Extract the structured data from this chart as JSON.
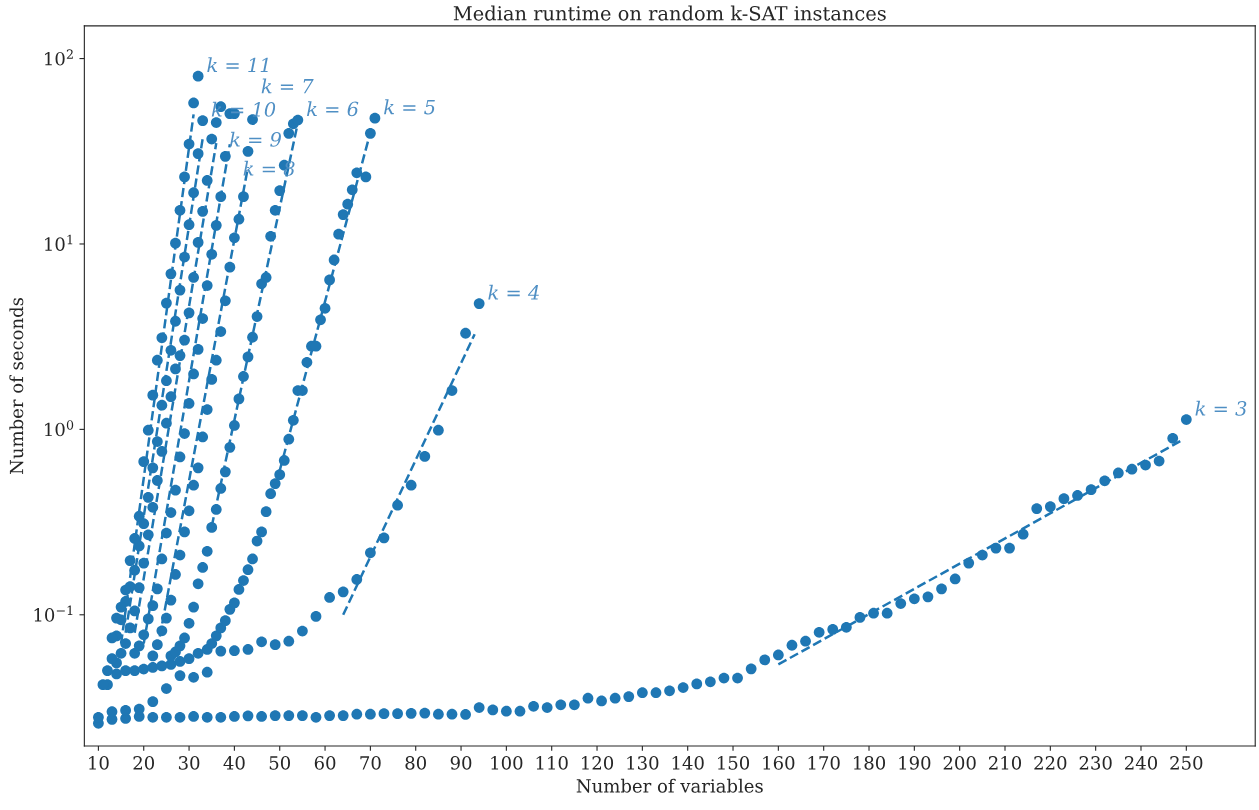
{
  "chart_data": {
    "type": "scatter",
    "title": "Median runtime on random k-SAT instances",
    "xlabel": "Number of variables",
    "ylabel": "Number of seconds",
    "log": "y",
    "grid": false,
    "legend": false,
    "marker": "circle",
    "xlim": [
      6.9,
      265.2
    ],
    "xticks": [
      10,
      20,
      30,
      40,
      50,
      60,
      70,
      80,
      90,
      100,
      110,
      120,
      130,
      140,
      150,
      160,
      170,
      180,
      190,
      200,
      210,
      220,
      230,
      240,
      250
    ],
    "ylim": [
      0.0196,
      150
    ],
    "yticks": [
      {
        "value": 0.1,
        "label": "10$^{−1}$"
      },
      {
        "value": 1,
        "label": "10$^{0}$"
      },
      {
        "value": 10,
        "label": "10$^{1}$"
      },
      {
        "value": 100,
        "label": "10$^{2}$"
      }
    ],
    "series": [
      {
        "color": "#1f77b4",
        "x": [
          10,
          13,
          16,
          19,
          22,
          25,
          28,
          31,
          34,
          37,
          40,
          43,
          46,
          49,
          52,
          55,
          58,
          61,
          64,
          67,
          70,
          73,
          76,
          79,
          82,
          85,
          88,
          91,
          94,
          97,
          100,
          103,
          106,
          109,
          112,
          115,
          118,
          121,
          124,
          127,
          130,
          133,
          136,
          139,
          142,
          145,
          148,
          151,
          154,
          157,
          160,
          163,
          166,
          169,
          172,
          175,
          178,
          181,
          184,
          187,
          190,
          193,
          196,
          199,
          202,
          205,
          208,
          211,
          214,
          217,
          220,
          223,
          226,
          229,
          232,
          235,
          238,
          241,
          244,
          247,
          250
        ],
        "values": [
          0.026,
          0.0273,
          0.0276,
          0.0283,
          0.028,
          0.028,
          0.028,
          0.0283,
          0.028,
          0.028,
          0.0283,
          0.0285,
          0.0283,
          0.0286,
          0.0286,
          0.0286,
          0.028,
          0.0286,
          0.0286,
          0.0291,
          0.0291,
          0.0293,
          0.0293,
          0.0294,
          0.0295,
          0.0291,
          0.0291,
          0.029,
          0.0316,
          0.0307,
          0.0302,
          0.0302,
          0.0321,
          0.0316,
          0.0327,
          0.0327,
          0.0355,
          0.0343,
          0.0355,
          0.0362,
          0.038,
          0.038,
          0.0389,
          0.0405,
          0.0424,
          0.0435,
          0.0456,
          0.0456,
          0.0511,
          0.0571,
          0.0607,
          0.0685,
          0.072,
          0.0805,
          0.0834,
          0.0856,
          0.0968,
          0.102,
          0.102,
          0.115,
          0.122,
          0.125,
          0.138,
          0.156,
          0.19,
          0.21,
          0.229,
          0.229,
          0.272,
          0.374,
          0.383,
          0.423,
          0.44,
          0.473,
          0.528,
          0.582,
          0.61,
          0.642,
          0.675,
          0.895,
          1.13
        ]
      },
      {
        "color": "#1f77b4",
        "x": [
          13,
          16,
          19,
          22,
          25,
          28,
          31,
          34,
          37,
          40,
          43,
          46,
          49,
          52,
          55,
          58,
          61,
          64,
          67,
          70,
          73,
          76,
          79,
          82,
          85,
          88,
          91,
          94
        ],
        "values": [
          0.03,
          0.0305,
          0.031,
          0.034,
          0.04,
          0.047,
          0.046,
          0.049,
          0.0637,
          0.064,
          0.065,
          0.0715,
          0.069,
          0.072,
          0.0817,
          0.098,
          0.124,
          0.133,
          0.155,
          0.216,
          0.26,
          0.39,
          0.5,
          0.715,
          0.99,
          1.62,
          3.3,
          4.77
        ]
      },
      {
        "color": "#1f77b4",
        "x": [
          12,
          14,
          16,
          18,
          20,
          22,
          24,
          26,
          28,
          30,
          32,
          34,
          35,
          36,
          37,
          38,
          39,
          40,
          41,
          42,
          43,
          44,
          45,
          46,
          47,
          48,
          49,
          50,
          51,
          52,
          53,
          54,
          55,
          56,
          57,
          58,
          59,
          60,
          61,
          62,
          63,
          64,
          65,
          66,
          67,
          69,
          70,
          71
        ],
        "values": [
          0.042,
          0.048,
          0.05,
          0.05,
          0.051,
          0.052,
          0.053,
          0.054,
          0.056,
          0.058,
          0.062,
          0.065,
          0.07,
          0.077,
          0.085,
          0.093,
          0.107,
          0.116,
          0.137,
          0.153,
          0.175,
          0.2,
          0.25,
          0.28,
          0.36,
          0.45,
          0.51,
          0.57,
          0.68,
          0.885,
          1.12,
          1.62,
          1.62,
          2.3,
          2.81,
          2.81,
          3.9,
          4.5,
          6.4,
          8.2,
          11.3,
          14.4,
          16.4,
          19.6,
          24.2,
          23,
          39.5,
          47.7
        ]
      },
      {
        "color": "#1f77b4",
        "x": [
          26,
          27,
          28,
          29,
          30,
          31,
          32,
          33,
          34,
          35,
          36,
          37,
          38,
          39,
          40,
          41,
          42,
          43,
          44,
          45,
          46,
          47,
          48,
          49,
          50,
          51,
          52,
          53,
          54
        ],
        "values": [
          0.06,
          0.063,
          0.068,
          0.075,
          0.09,
          0.11,
          0.147,
          0.18,
          0.22,
          0.296,
          0.37,
          0.48,
          0.59,
          0.8,
          1.05,
          1.46,
          1.93,
          2.46,
          3.14,
          4.06,
          6.1,
          6.6,
          11,
          15.2,
          19.4,
          26.6,
          39.5,
          44.5,
          46.6
        ]
      },
      {
        "color": "#1f77b4",
        "x": [
          22,
          23,
          24,
          25,
          26,
          27,
          28,
          29,
          30,
          31,
          32,
          33,
          34,
          35,
          36,
          37,
          38,
          39,
          40,
          41,
          42,
          43,
          44
        ],
        "values": [
          0.06,
          0.069,
          0.082,
          0.096,
          0.12,
          0.165,
          0.21,
          0.28,
          0.364,
          0.5,
          0.62,
          0.91,
          1.28,
          1.86,
          2.36,
          3.37,
          4.94,
          7.5,
          10.8,
          13.6,
          18,
          31.6,
          46.9
        ]
      },
      {
        "color": "#1f77b4",
        "x": [
          18,
          19,
          20,
          21,
          22,
          23,
          24,
          25,
          26,
          27,
          28,
          29,
          30,
          31,
          32,
          33,
          34,
          35,
          36,
          37,
          38,
          39,
          40
        ],
        "values": [
          0.062,
          0.068,
          0.078,
          0.095,
          0.112,
          0.138,
          0.2,
          0.276,
          0.356,
          0.47,
          0.71,
          0.95,
          1.38,
          1.99,
          2.7,
          3.96,
          5.97,
          8.8,
          12.6,
          18,
          29.7,
          50.5,
          50.5
        ]
      },
      {
        "color": "#1f77b4",
        "x": [
          14,
          15,
          16,
          17,
          18,
          19,
          20,
          21,
          22,
          23,
          24,
          25,
          26,
          27,
          28,
          29,
          30,
          31,
          32,
          33,
          34,
          35,
          36,
          37
        ],
        "values": [
          0.055,
          0.062,
          0.07,
          0.085,
          0.105,
          0.14,
          0.19,
          0.27,
          0.38,
          0.53,
          0.76,
          1.08,
          1.5,
          2.12,
          2.5,
          3.03,
          4.25,
          6.6,
          10.2,
          15,
          22,
          36.8,
          45.2,
          55
        ]
      },
      {
        "color": "#1f77b4",
        "x": [
          13,
          14,
          15,
          16,
          17,
          18,
          19,
          20,
          21,
          22,
          23,
          24,
          25,
          26,
          27,
          28,
          29,
          30,
          31,
          32,
          33
        ],
        "values": [
          0.058,
          0.077,
          0.094,
          0.118,
          0.142,
          0.174,
          0.235,
          0.31,
          0.43,
          0.62,
          0.86,
          1.35,
          1.83,
          2.67,
          3.83,
          5.64,
          8.5,
          12.7,
          18.9,
          30.7,
          46.3
        ]
      },
      {
        "color": "#1f77b4",
        "x": [
          10,
          11,
          12,
          13,
          14,
          15,
          16,
          17,
          18,
          19,
          20,
          21,
          22,
          23,
          24,
          25,
          26,
          27,
          28,
          29,
          30,
          31,
          32
        ],
        "values": [
          0.028,
          0.042,
          0.05,
          0.075,
          0.096,
          0.11,
          0.136,
          0.196,
          0.258,
          0.34,
          0.67,
          0.99,
          1.53,
          2.36,
          3.12,
          4.8,
          6.9,
          10.1,
          15.2,
          23,
          34.6,
          57.6,
          80.4
        ]
      },
      {
        "type": "line",
        "color": "#1f77b4",
        "marker": "none",
        "line_style": "dashed",
        "x": [
          160,
          249
        ],
        "values": [
          0.054,
          0.873
        ]
      },
      {
        "type": "line",
        "color": "#1f77b4",
        "marker": "none",
        "line_style": "dashed",
        "x": [
          64,
          93
        ],
        "values": [
          0.1,
          3.26
        ]
      },
      {
        "type": "line",
        "color": "#1f77b4",
        "marker": "none",
        "line_style": "dashed",
        "x": [
          50,
          70
        ],
        "values": [
          0.6,
          40
        ]
      },
      {
        "type": "line",
        "color": "#1f77b4",
        "marker": "none",
        "line_style": "dashed",
        "x": [
          35,
          54
        ],
        "values": [
          0.3,
          45
        ]
      },
      {
        "type": "line",
        "color": "#1f77b4",
        "marker": "none",
        "line_style": "dashed",
        "x": [
          23,
          43
        ],
        "values": [
          0.065,
          26
        ]
      },
      {
        "type": "line",
        "color": "#1f77b4",
        "marker": "none",
        "line_style": "dashed",
        "x": [
          20,
          39
        ],
        "values": [
          0.07,
          34.5
        ]
      },
      {
        "type": "line",
        "color": "#1f77b4",
        "marker": "none",
        "line_style": "dashed",
        "x": [
          18,
          36
        ],
        "values": [
          0.08,
          35
        ]
      },
      {
        "type": "line",
        "color": "#1f77b4",
        "marker": "none",
        "line_style": "dashed",
        "x": [
          16,
          33
        ],
        "values": [
          0.08,
          37
        ]
      },
      {
        "type": "line",
        "color": "#1f77b4",
        "marker": "none",
        "line_style": "dashed",
        "x": [
          15,
          31
        ],
        "values": [
          0.07,
          50
        ]
      }
    ],
    "annotations": [
      {
        "text": "k = 11",
        "x": 32,
        "y": 80.4
      },
      {
        "text": "k = 10",
        "x": 33,
        "y": 46.3
      },
      {
        "text": "k = 9",
        "x": 37,
        "y": 55
      },
      {
        "text": "k = 8",
        "x": 40,
        "y": 50.5
      },
      {
        "text": "k = 7",
        "x": 44,
        "y": 46.9
      },
      {
        "text": "k = 6",
        "x": 54,
        "y": 46.6
      },
      {
        "text": "k = 5",
        "x": 71,
        "y": 47.7
      },
      {
        "text": "k = 4",
        "x": 94,
        "y": 4.77
      },
      {
        "text": "k = 3",
        "x": 250,
        "y": 1.13
      }
    ]
  }
}
